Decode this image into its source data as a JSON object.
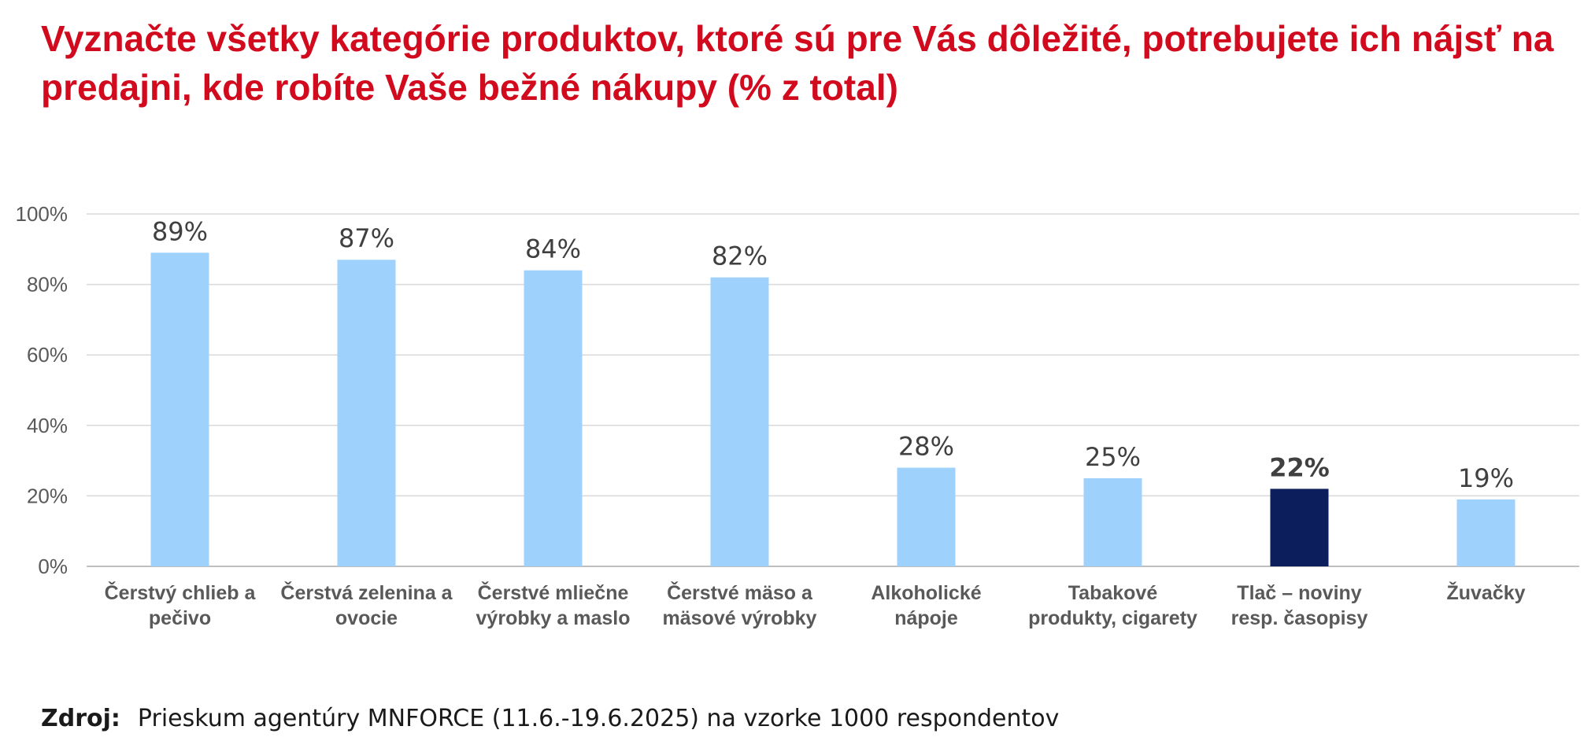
{
  "title": "Vyznačte všetky kategórie produktov, ktoré sú pre Vás dôležité, potrebujete ich nájsť na predajni, kde robíte Vaše bežné nákupy (% z total)",
  "source": {
    "label": "Zdroj:",
    "text": "Prieskum agentúry MNFORCE (11.6.-19.6.2025) na vzorke 1000 respondentov"
  },
  "chart_data": {
    "type": "bar",
    "title": "",
    "xlabel": "",
    "ylabel": "",
    "ylim": [
      0,
      100
    ],
    "y_ticks": [
      "0%",
      "20%",
      "40%",
      "60%",
      "80%",
      "100%"
    ],
    "grid": true,
    "categories": [
      [
        "Čerstvý chlieb a",
        "pečivo"
      ],
      [
        "Čerstvá zelenina a",
        "ovocie"
      ],
      [
        "Čerstvé mliečne",
        "výrobky a maslo"
      ],
      [
        "Čerstvé mäso a",
        "mäsové výrobky"
      ],
      [
        "Alkoholické",
        "nápoje"
      ],
      [
        "Tabakové",
        "produkty, cigarety"
      ],
      [
        "Tlač – noviny",
        "resp. časopisy"
      ],
      [
        "Žuvačky"
      ]
    ],
    "values": [
      89,
      87,
      84,
      82,
      28,
      25,
      22,
      19
    ],
    "data_labels": [
      "89%",
      "87%",
      "84%",
      "82%",
      "28%",
      "25%",
      "22%",
      "19%"
    ],
    "highlight_index": 6,
    "colors": {
      "bar": "#9ed1fb",
      "highlight": "#0c1f5c",
      "grid": "#d9d9d9",
      "axis_text": "#595959",
      "label_text": "#404040"
    }
  }
}
